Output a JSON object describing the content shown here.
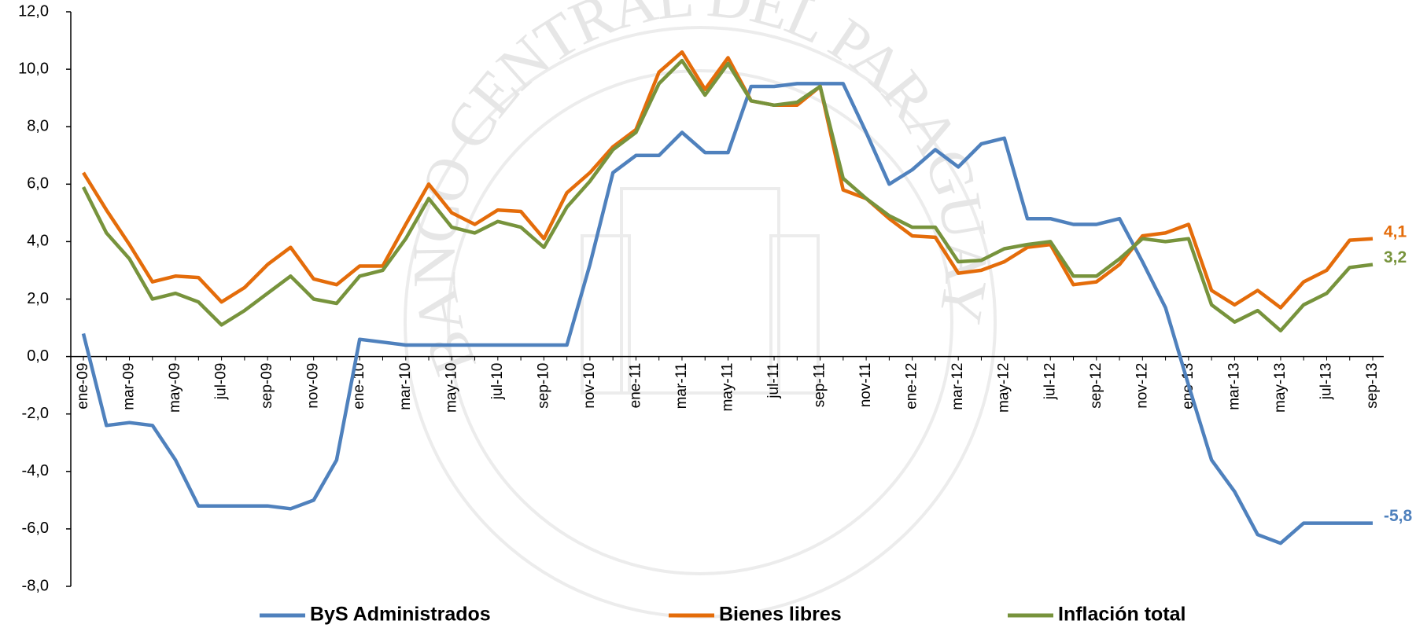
{
  "chart_data": {
    "type": "line",
    "watermark": "BANCO CENTRAL DEL PARAGUAY",
    "categories": [
      "ene-09",
      null,
      "mar-09",
      null,
      "may-09",
      null,
      "jul-09",
      null,
      "sep-09",
      null,
      "nov-09",
      null,
      "ene-10",
      null,
      "mar-10",
      null,
      "may-10",
      null,
      "jul-10",
      null,
      "sep-10",
      null,
      "nov-10",
      null,
      "ene-11",
      null,
      "mar-11",
      null,
      "may-11",
      null,
      "jul-11",
      null,
      "sep-11",
      null,
      "nov-11",
      null,
      "ene-12",
      null,
      "mar-12",
      null,
      "may-12",
      null,
      "jul-12",
      null,
      "sep-12",
      null,
      "nov-12",
      null,
      "ene-13",
      null,
      "mar-13",
      null,
      "may-13",
      null,
      "jul-13",
      null,
      "sep-13"
    ],
    "series": [
      {
        "name": "ByS Administrados",
        "color": "#4f81bd",
        "values": [
          0.8,
          -2.4,
          -2.3,
          -2.4,
          -3.6,
          -5.2,
          -5.2,
          -5.2,
          -5.2,
          -5.3,
          -5.0,
          -3.6,
          0.6,
          0.5,
          0.4,
          0.4,
          0.4,
          0.4,
          0.4,
          0.4,
          0.4,
          0.4,
          3.2,
          6.4,
          7.0,
          7.0,
          7.8,
          7.1,
          7.1,
          9.4,
          9.4,
          9.5,
          9.5,
          9.5,
          7.8,
          6.0,
          6.5,
          7.2,
          6.6,
          7.4,
          7.6,
          4.8,
          4.8,
          4.6,
          4.6,
          4.8,
          3.3,
          1.7,
          -1.0,
          -3.6,
          -4.7,
          -6.2,
          -6.5,
          -5.8,
          -5.8,
          -5.8,
          -5.8
        ],
        "value_labels": [
          null,
          null,
          null,
          null,
          null,
          null,
          null,
          null,
          null,
          null,
          null,
          null,
          null,
          null,
          null,
          null,
          null,
          null,
          null,
          null,
          null,
          null,
          null,
          null,
          null,
          null,
          null,
          null,
          null,
          null,
          null,
          null,
          null,
          null,
          null,
          null,
          null,
          null,
          null,
          null,
          null,
          null,
          null,
          null,
          null,
          null,
          null,
          null,
          null,
          null,
          null,
          null,
          null,
          null,
          null,
          null,
          "-5,8"
        ]
      },
      {
        "name": "Bienes libres",
        "color": "#e46c0a",
        "values": [
          6.4,
          5.1,
          3.9,
          2.6,
          2.8,
          2.75,
          1.9,
          2.4,
          3.2,
          3.8,
          2.7,
          2.5,
          3.15,
          3.15,
          4.6,
          6.0,
          5.0,
          4.6,
          5.1,
          5.05,
          4.1,
          5.7,
          6.4,
          7.3,
          7.9,
          9.9,
          10.6,
          9.3,
          10.4,
          8.9,
          8.75,
          8.75,
          9.4,
          5.8,
          5.5,
          4.8,
          4.2,
          4.15,
          2.9,
          3.0,
          3.3,
          3.8,
          3.9,
          2.5,
          2.6,
          3.2,
          4.2,
          4.3,
          4.6,
          2.3,
          1.8,
          2.3,
          1.7,
          2.6,
          3.0,
          4.05,
          4.1
        ],
        "value_labels": [
          null,
          null,
          null,
          null,
          null,
          null,
          null,
          null,
          null,
          null,
          null,
          null,
          null,
          null,
          null,
          null,
          null,
          null,
          null,
          null,
          null,
          null,
          null,
          null,
          null,
          null,
          null,
          null,
          null,
          null,
          null,
          null,
          null,
          null,
          null,
          null,
          null,
          null,
          null,
          null,
          null,
          null,
          null,
          null,
          null,
          null,
          null,
          null,
          null,
          null,
          null,
          null,
          null,
          null,
          null,
          null,
          "4,1"
        ]
      },
      {
        "name": "Inflación total",
        "color": "#77933c",
        "values": [
          5.9,
          4.3,
          3.4,
          2.0,
          2.2,
          1.9,
          1.1,
          1.6,
          2.2,
          2.8,
          2.0,
          1.85,
          2.8,
          3.0,
          4.1,
          5.5,
          4.5,
          4.3,
          4.7,
          4.5,
          3.8,
          5.2,
          6.1,
          7.2,
          7.8,
          9.5,
          10.3,
          9.1,
          10.2,
          8.9,
          8.75,
          8.85,
          9.4,
          6.2,
          5.5,
          4.9,
          4.5,
          4.5,
          3.3,
          3.35,
          3.75,
          3.9,
          4.0,
          2.8,
          2.8,
          3.4,
          4.1,
          4.0,
          4.1,
          1.8,
          1.2,
          1.6,
          0.9,
          1.8,
          2.2,
          3.1,
          3.2
        ],
        "value_labels": [
          null,
          null,
          null,
          null,
          null,
          null,
          null,
          null,
          null,
          null,
          null,
          null,
          null,
          null,
          null,
          null,
          null,
          null,
          null,
          null,
          null,
          null,
          null,
          null,
          null,
          null,
          null,
          null,
          null,
          null,
          null,
          null,
          null,
          null,
          null,
          null,
          null,
          null,
          null,
          null,
          null,
          null,
          null,
          null,
          null,
          null,
          null,
          null,
          null,
          null,
          null,
          null,
          null,
          null,
          null,
          null,
          "3,2"
        ]
      }
    ],
    "ylim": [
      -8,
      12
    ],
    "yticks": [
      {
        "value": -8,
        "label": "-8,0"
      },
      {
        "value": -6,
        "label": "-6,0"
      },
      {
        "value": -4,
        "label": "-4,0"
      },
      {
        "value": -2,
        "label": "-2,0"
      },
      {
        "value": 0,
        "label": "0,0"
      },
      {
        "value": 2,
        "label": "2,0"
      },
      {
        "value": 4,
        "label": "4,0"
      },
      {
        "value": 6,
        "label": "6,0"
      },
      {
        "value": 8,
        "label": "8,0"
      },
      {
        "value": 10,
        "label": "10,0"
      },
      {
        "value": 12,
        "label": "12,0"
      }
    ],
    "grid": false,
    "legend": "bottom"
  }
}
